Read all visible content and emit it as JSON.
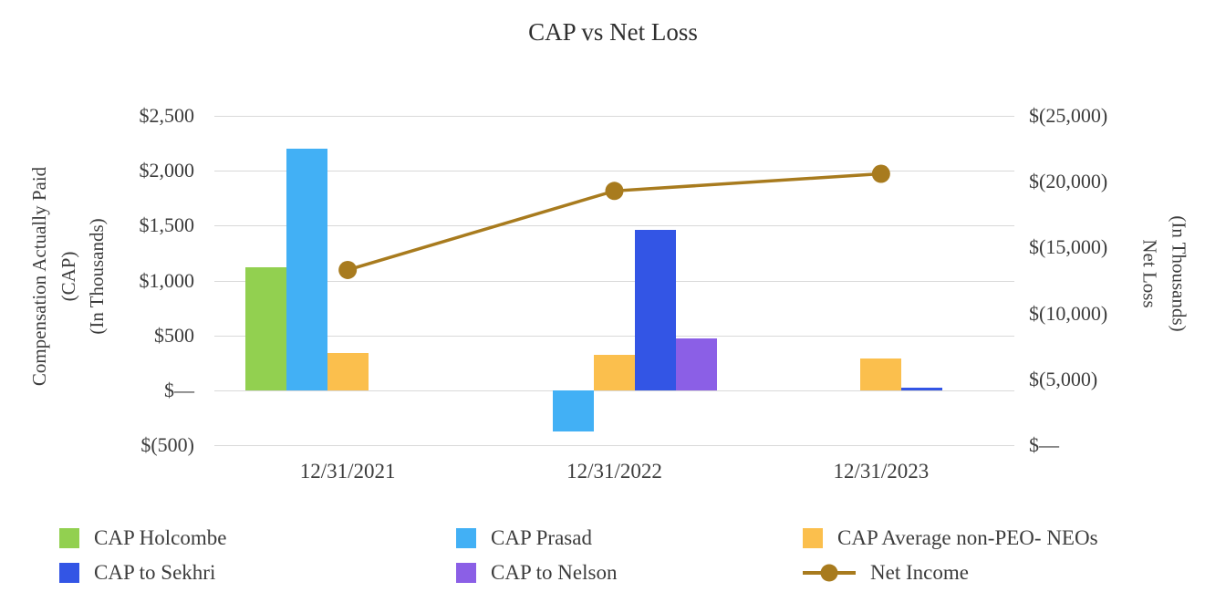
{
  "chart_data": {
    "type": "bar",
    "subtype": "bar-line-combo",
    "title": "CAP vs Net Loss",
    "categories": [
      "12/31/2021",
      "12/31/2022",
      "12/31/2023"
    ],
    "bar_series": [
      {
        "name": "CAP Holcombe",
        "color": "#92d050",
        "values": [
          1120,
          null,
          null
        ]
      },
      {
        "name": "CAP Prasad",
        "color": "#42b0f5",
        "values": [
          2200,
          -375,
          null
        ]
      },
      {
        "name": "CAP Average non-PEO- NEOs",
        "color": "#fbbf4d",
        "values": [
          340,
          325,
          290
        ]
      },
      {
        "name": "CAP to Sekhri",
        "color": "#3355e5",
        "values": [
          null,
          1460,
          20
        ]
      },
      {
        "name": "CAP to Nelson",
        "color": "#8b5fe6",
        "values": [
          null,
          475,
          null
        ]
      }
    ],
    "line_series": {
      "name": "Net Income",
      "color": "#a87b1e",
      "axis": "right",
      "values": [
        -13300,
        -19300,
        -20600
      ]
    },
    "left_axis": {
      "title_lines": [
        "Compensation Actually Paid",
        "(CAP)",
        "(In Thousands)"
      ],
      "min": -500,
      "max": 2500,
      "ticks": [
        "$2,500",
        "$2,000",
        "$1,500",
        "$1,000",
        "$500",
        "$—",
        "$(500)"
      ]
    },
    "right_axis": {
      "title_lines": [
        "Net Loss",
        "(In Thousands)"
      ],
      "min": -25000,
      "max": 0,
      "ticks": [
        "$(25,000)",
        "$(20,000)",
        "$(15,000)",
        "$(10,000)",
        "$(5,000)",
        "$—"
      ]
    },
    "grid": true,
    "legend_position": "bottom",
    "legend_rows": [
      [
        "CAP Holcombe",
        "CAP Prasad",
        "CAP Average non-PEO- NEOs"
      ],
      [
        "CAP to Sekhri",
        "CAP to Nelson",
        "Net Income"
      ]
    ],
    "colors": {
      "grid": "#d9d9d9",
      "text": "#3c3c3c"
    }
  }
}
